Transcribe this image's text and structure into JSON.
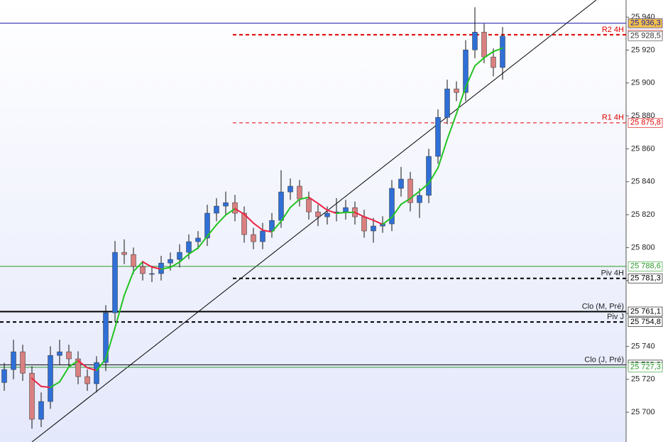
{
  "chart_data": {
    "type": "candlestick",
    "categories": [
      null,
      null,
      null,
      null,
      null,
      null,
      null,
      null,
      null,
      null,
      null,
      null,
      null,
      null,
      null,
      null,
      null,
      null,
      null,
      null,
      null,
      null,
      null,
      null,
      null,
      null,
      null,
      null,
      null,
      null,
      null,
      null,
      null,
      null,
      null,
      null,
      null,
      null,
      null,
      null,
      null,
      null,
      null,
      null,
      null,
      null,
      null,
      null,
      null,
      null,
      null,
      null,
      null,
      null,
      null
    ],
    "open": [
      25718.0,
      25725.9,
      25736.7,
      25723.7,
      25695.7,
      25706.5,
      25734.5,
      25736.7,
      25732.4,
      25721.6,
      25717.3,
      25730.2,
      25760.4,
      25797.1,
      25795.8,
      25788.5,
      25784.2,
      25784.2,
      25790.6,
      25792.8,
      25797.1,
      25803.6,
      25805.8,
      25820.9,
      25825.2,
      25827.3,
      25820.9,
      25807.9,
      25803.6,
      25810.1,
      25816.5,
      25833.8,
      25837.3,
      25829.5,
      25821.7,
      25818.7,
      25820.9,
      25821.7,
      25824.3,
      25818.7,
      25810.1,
      25813.1,
      25814.4,
      25836.0,
      25841.6,
      25827.3,
      25831.7,
      25855.4,
      25879.1,
      25896.4,
      25894.2,
      25920.1,
      25930.9,
      25915.8,
      25909.4
    ],
    "high": [
      25730.0,
      25744.0,
      25741.0,
      25728.0,
      25712.0,
      25740.0,
      25744.0,
      25741.0,
      25737.0,
      25726.0,
      25734.0,
      25765.0,
      25804.0,
      25805.0,
      25800.0,
      25792.0,
      25789.0,
      25795.0,
      25797.0,
      25802.0,
      25808.0,
      25810.0,
      25826.0,
      25830.0,
      25834.0,
      25832.0,
      25825.0,
      25812.0,
      25815.0,
      25821.0,
      25847.0,
      25842.0,
      25841.0,
      25834.0,
      25826.0,
      25825.0,
      25830.0,
      25829.0,
      25828.0,
      25823.0,
      25818.0,
      25819.0,
      25841.0,
      25849.0,
      25846.0,
      25836.0,
      25860.0,
      25884.0,
      25902.0,
      25901.0,
      25926.0,
      25946.0,
      25936.0,
      25921.0,
      25934.0
    ],
    "low": [
      25713.0,
      25720.0,
      25719.0,
      25690.0,
      25691.0,
      25702.0,
      25729.0,
      25728.0,
      25717.0,
      25713.0,
      25712.0,
      25725.0,
      25755.0,
      25790.0,
      25784.0,
      25780.0,
      25779.0,
      25780.0,
      25786.0,
      25788.0,
      25793.0,
      25799.0,
      25801.0,
      25816.0,
      25820.0,
      25816.0,
      25803.0,
      25799.0,
      25799.0,
      25806.0,
      25812.0,
      25829.0,
      25825.0,
      25817.0,
      25813.0,
      25814.0,
      25816.0,
      25817.0,
      25814.0,
      25806.0,
      25803.0,
      25809.0,
      25810.0,
      25831.0,
      25822.0,
      25818.0,
      25827.0,
      25851.0,
      25875.0,
      25889.0,
      25889.0,
      25915.0,
      25912.0,
      25904.0,
      25902.0
    ],
    "close": [
      25725.9,
      25736.7,
      25723.7,
      25695.7,
      25706.5,
      25734.5,
      25736.7,
      25732.4,
      25721.6,
      25717.3,
      25730.2,
      25760.4,
      25797.1,
      25795.8,
      25788.5,
      25784.2,
      25784.2,
      25790.6,
      25792.8,
      25797.1,
      25803.6,
      25805.8,
      25820.9,
      25825.2,
      25827.3,
      25820.9,
      25807.9,
      25803.6,
      25810.1,
      25816.5,
      25833.8,
      25837.3,
      25829.5,
      25821.7,
      25818.7,
      25820.9,
      25821.7,
      25824.3,
      25818.7,
      25810.1,
      25813.1,
      25814.4,
      25836.0,
      25841.6,
      25827.3,
      25831.7,
      25855.4,
      25879.1,
      25896.4,
      25894.2,
      25920.1,
      25930.9,
      25915.8,
      25909.4,
      25928.5
    ],
    "ma": [
      null,
      null,
      null,
      25720.5,
      25715.7,
      25715.1,
      25718.4,
      25727.5,
      25731.3,
      25727.0,
      25725.4,
      25732.4,
      25751.3,
      25770.9,
      25785.5,
      25791.4,
      25788.2,
      25786.9,
      25788.0,
      25791.2,
      25796.0,
      25799.8,
      25806.9,
      25813.9,
      25819.8,
      25823.6,
      25820.3,
      25814.9,
      25810.6,
      25809.5,
      25816.0,
      25824.4,
      25829.3,
      25830.6,
      25826.8,
      25822.7,
      25820.8,
      25821.4,
      25821.4,
      25818.7,
      25816.6,
      25814.1,
      25818.4,
      25826.3,
      25829.8,
      25834.2,
      25839.0,
      25848.4,
      25865.7,
      25881.3,
      25897.5,
      25910.4,
      25915.3,
      25919.1,
      25921.2
    ],
    "up_color": "#2f6fd6",
    "down_color": "#d98080",
    "ma_up_color": "#22c322",
    "ma_down_color": "#ee2244",
    "ylim": [
      25681.9,
      25950.4
    ],
    "yticks": [
      {
        "value": 25700,
        "label": "25 700"
      },
      {
        "value": 25720,
        "label": "25 720"
      },
      {
        "value": 25740,
        "label": "25 740"
      },
      {
        "value": 25760,
        "label": "25 760"
      },
      {
        "value": 25780,
        "label": "25 780"
      },
      {
        "value": 25800,
        "label": "25 800"
      },
      {
        "value": 25820,
        "label": "25 820"
      },
      {
        "value": 25840,
        "label": "25 840"
      },
      {
        "value": 25860,
        "label": "25 860"
      },
      {
        "value": 25880,
        "label": "25 880"
      },
      {
        "value": 25900,
        "label": "25 900"
      },
      {
        "value": 25920,
        "label": "25 920"
      },
      {
        "value": 25940,
        "label": "25 940"
      }
    ],
    "levels": [
      {
        "value": 25936.3,
        "label": "25 936,3",
        "color": "#1a1aa6",
        "line": "solid",
        "span": "full",
        "width": 1,
        "box": "#f2c24a"
      },
      {
        "value": 25929.3,
        "label": "25 929,3",
        "name": "R2 4H",
        "color": "#e00000",
        "line": "dashed",
        "span": "right",
        "width": 2,
        "box": "#ffffff"
      },
      {
        "value": 25928.5,
        "label": "25 928,5",
        "color": "#333333",
        "line": "none",
        "span": "right",
        "width": 1,
        "box": "#ffffff"
      },
      {
        "value": 25875.8,
        "label": "25 875,8",
        "name": "R1 4H",
        "color": "#e00000",
        "line": "dashed",
        "span": "right",
        "width": 1,
        "box": "#ffffff"
      },
      {
        "value": 25788.6,
        "label": "25 788,6",
        "color": "#2a9a2a",
        "line": "solid",
        "span": "full",
        "width": 1,
        "box": "#ffffff"
      },
      {
        "value": 25781.3,
        "label": "25 781,3",
        "name": "Piv 4H",
        "color": "#000000",
        "line": "dashed",
        "span": "right",
        "width": 2,
        "box": "#ffffff"
      },
      {
        "value": 25761.1,
        "label": "25 761,1",
        "name": "Clo (M, Pré)",
        "color": "#000000",
        "line": "solid",
        "span": "full",
        "width": 2,
        "box": "#ffffff"
      },
      {
        "value": 25754.8,
        "label": "25 754,8",
        "name": "Piv J",
        "color": "#000000",
        "line": "dashed",
        "span": "full",
        "width": 2,
        "box": "#ffffff"
      },
      {
        "value": 25728.8,
        "label": "25 728,8",
        "name": "Clo (J, Pré)",
        "color": "#000000",
        "line": "solid",
        "span": "full",
        "width": 1,
        "box": "#ffffff"
      },
      {
        "value": 25727.3,
        "label": "25 727,3",
        "color": "#2a9a2a",
        "line": "solid",
        "span": "full",
        "width": 1,
        "box": "#ffffff"
      }
    ]
  }
}
